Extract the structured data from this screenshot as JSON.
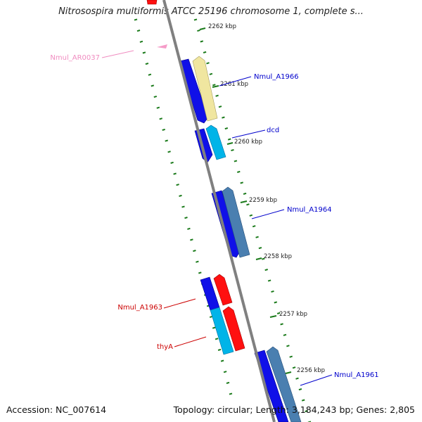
{
  "title": "Nitrosospira multiformis ATCC 25196 chromosome 1, complete s...",
  "footer": {
    "accession": "Accession: NC_007614",
    "topology": "Topology: circular; Length: 3,184,243 bp; Genes: 2,805"
  },
  "colors": {
    "backbone": "#808080",
    "ticks": "#1a7a1a",
    "forward_gene": "#1010e8",
    "reverse_cds_light": "#00b4e8",
    "reverse_cds_pale": "#f0e6a0",
    "reverse_cds_steel": "#4a7fb0",
    "rna_gene": "#ff1010",
    "ncrna": "#f59cc8",
    "label_blue": "#0000cc",
    "label_red": "#cc0000",
    "label_pink": "#f08cc0"
  },
  "ticks": [
    {
      "label": "2262 kbp"
    },
    {
      "label": "2261 kbp"
    },
    {
      "label": "2260 kbp"
    },
    {
      "label": "2259 kbp"
    },
    {
      "label": "2258 kbp"
    },
    {
      "label": "2257 kbp"
    },
    {
      "label": "2256 kbp"
    }
  ],
  "gene_labels": [
    {
      "name": "Nmul_AR0037",
      "color": "label_pink"
    },
    {
      "name": "Nmul_A1966",
      "color": "label_blue"
    },
    {
      "name": "dcd",
      "color": "label_blue"
    },
    {
      "name": "Nmul_A1964",
      "color": "label_blue"
    },
    {
      "name": "Nmul_A1963",
      "color": "label_red"
    },
    {
      "name": "thyA",
      "color": "label_red"
    },
    {
      "name": "Nmul_A1961",
      "color": "label_blue"
    }
  ]
}
